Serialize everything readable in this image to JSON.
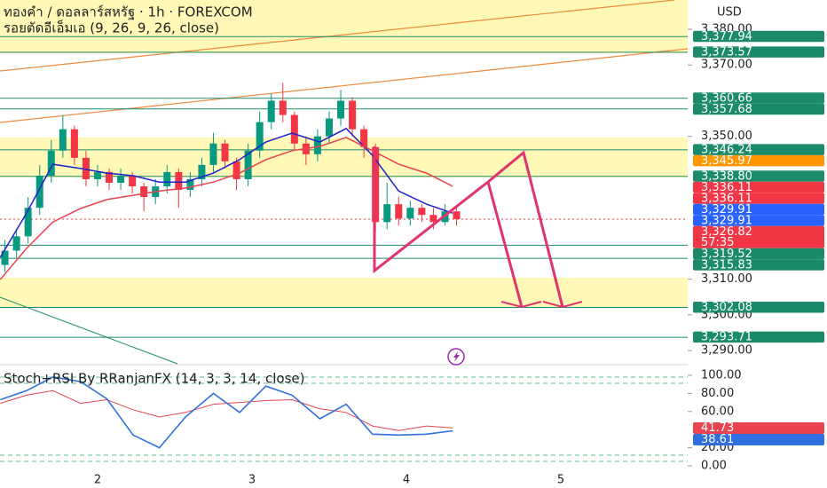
{
  "chart_data": [
    {
      "type": "candlestick",
      "title": "ทองคำ / ดอลลาร์สหรัฐ · 1h · FOREXCOM",
      "subtitle": "รอยตัดอีเอ็มเอ (9, 26, 9, 26, close)",
      "axis_label": "USD",
      "x": [
        1.4,
        1.475,
        1.55,
        1.625,
        1.7,
        1.775,
        1.85,
        1.925,
        2.0,
        2.075,
        2.15,
        2.225,
        2.3,
        2.375,
        2.45,
        2.525,
        2.6,
        2.675,
        2.75,
        2.825,
        2.9,
        2.975,
        3.05,
        3.125,
        3.2,
        3.275,
        3.35,
        3.425,
        3.5,
        3.575,
        3.65,
        3.725,
        3.8,
        3.875,
        3.95,
        4.025,
        4.1,
        4.175,
        4.25,
        4.325
      ],
      "open": [
        3314,
        3318,
        3322,
        3330,
        3339,
        3346,
        3352,
        3344,
        3338,
        3340,
        3337,
        3339,
        3336,
        3333,
        3336,
        3340,
        3335,
        3338,
        3342,
        3348,
        3343,
        3338,
        3346,
        3354,
        3360,
        3356,
        3348,
        3345,
        3350,
        3355,
        3360,
        3352,
        3347,
        3326,
        3331,
        3327,
        3330,
        3328,
        3326,
        3329
      ],
      "high": [
        3321,
        3324,
        3333,
        3342,
        3349,
        3356,
        3353,
        3346,
        3342,
        3341,
        3341,
        3340,
        3337,
        3338,
        3342,
        3341,
        3340,
        3344,
        3351,
        3349,
        3344,
        3348,
        3357,
        3362,
        3365,
        3357,
        3350,
        3352,
        3357,
        3363,
        3361,
        3353,
        3348,
        3337,
        3333,
        3332,
        3331,
        3330,
        3331,
        3330
      ],
      "low": [
        3312,
        3316,
        3320,
        3328,
        3337,
        3344,
        3342,
        3336,
        3336,
        3335,
        3335,
        3334,
        3329,
        3331,
        3334,
        3330,
        3333,
        3336,
        3340,
        3341,
        3335,
        3336,
        3344,
        3352,
        3354,
        3346,
        3342,
        3343,
        3348,
        3353,
        3350,
        3344,
        3323,
        3324,
        3325,
        3325,
        3326,
        3324,
        3325,
        3325
      ],
      "close": [
        3318,
        3322,
        3330,
        3339,
        3346,
        3352,
        3344,
        3338,
        3340,
        3337,
        3339,
        3336,
        3333,
        3336,
        3340,
        3335,
        3338,
        3342,
        3348,
        3343,
        3338,
        3346,
        3354,
        3360,
        3356,
        3348,
        3345,
        3350,
        3355,
        3360,
        3352,
        3347,
        3326,
        3331,
        3327,
        3330,
        3328,
        3326,
        3329,
        3326.82
      ],
      "up_color": "#089981",
      "down_color": "#f23645",
      "overlays": [
        {
          "color": "#1e22c8",
          "x": [
            1.37,
            1.54,
            1.71,
            1.89,
            2.06,
            2.23,
            2.4,
            2.57,
            2.75,
            2.92,
            3.09,
            3.26,
            3.44,
            3.61,
            3.78,
            3.95,
            4.13,
            4.3
          ],
          "values": [
            3316.1,
            3328.5,
            3342.2,
            3341.0,
            3339.7,
            3339.0,
            3337.2,
            3337.2,
            3339.7,
            3343.5,
            3348.4,
            3350.9,
            3348.4,
            3352.2,
            3344.7,
            3334.7,
            3331.0,
            3328.5
          ]
        },
        {
          "color": "#e8434f",
          "x": [
            1.37,
            1.54,
            1.71,
            1.89,
            2.06,
            2.23,
            2.4,
            2.57,
            2.75,
            2.92,
            3.09,
            3.26,
            3.44,
            3.61,
            3.78,
            3.95,
            4.13,
            4.3
          ],
          "values": [
            3309.9,
            3318.6,
            3326.0,
            3329.8,
            3332.3,
            3333.5,
            3334.7,
            3335.5,
            3337.2,
            3339.7,
            3343.5,
            3346.0,
            3347.2,
            3349.7,
            3346.0,
            3342.2,
            3339.7,
            3336.0
          ]
        }
      ],
      "xlim": [
        1.368,
        5.822
      ],
      "xticks": [
        2,
        3,
        4,
        5
      ],
      "ylim": [
        3286.3,
        3388.2
      ],
      "yticks": [
        {
          "value": 3380,
          "label": "3,380.00"
        },
        {
          "value": 3370,
          "label": "3,370.00"
        },
        {
          "value": 3350,
          "label": "3,350.00"
        },
        {
          "value": 3310,
          "label": "3,310.00"
        },
        {
          "value": 3300,
          "label": "3,300.00"
        },
        {
          "value": 3290,
          "label": "3,290.00"
        }
      ],
      "price_labels": [
        {
          "value": 3377.94,
          "label": "3,377.94",
          "color": "#1b8a6b",
          "line": true
        },
        {
          "value": 3373.57,
          "label": "3,373.57",
          "color": "#1b8a6b",
          "line": true
        },
        {
          "value": 3360.66,
          "label": "3,360.66",
          "color": "#1b8a6b",
          "line": true
        },
        {
          "value": 3357.68,
          "label": "3,357.68",
          "color": "#1b8a6b",
          "line": true
        },
        {
          "value": 3346.24,
          "label": "3,346.24",
          "color": "#1b8a6b",
          "line": true
        },
        {
          "value": 3345.97,
          "label": "3,345.97",
          "color": "#ff9800",
          "line": false
        },
        {
          "value": 3338.8,
          "label": "3,338.80",
          "color": "#1b8a6b",
          "line": true
        },
        {
          "value": 3336.11,
          "label": "3,336.11",
          "color": "#f23645",
          "line": false
        },
        {
          "value": 3336.11,
          "label": "3,336.11",
          "color": "#f23645",
          "line": false
        },
        {
          "value": 3329.91,
          "label": "3,329.91",
          "color": "#2962ff",
          "line": false
        },
        {
          "value": 3329.91,
          "label": "3,329.91",
          "color": "#2962ff",
          "line": false
        },
        {
          "value": 3326.82,
          "label": "3,326.82",
          "color": "#f23645",
          "line": false,
          "countdown": "57:35"
        },
        {
          "value": 3319.52,
          "label": "3,319.52",
          "color": "#1b8a6b",
          "line": true
        },
        {
          "value": 3315.83,
          "label": "3,315.83",
          "color": "#1b8a6b",
          "line": true
        },
        {
          "value": 3302.08,
          "label": "3,302.08",
          "color": "#1b8a6b",
          "line": true
        },
        {
          "value": 3293.71,
          "label": "3,293.71",
          "color": "#1b8a6b",
          "line": true
        }
      ]
    },
    {
      "type": "line",
      "title": "Stoch+RSI By RRanjanFX (14, 3, 3, 14, close)",
      "x": [
        1.37,
        1.54,
        1.71,
        1.89,
        2.06,
        2.23,
        2.4,
        2.57,
        2.75,
        2.92,
        3.09,
        3.26,
        3.44,
        3.61,
        3.78,
        3.95,
        4.13,
        4.3
      ],
      "series": [
        {
          "color": "#e8434f",
          "values": [
            69,
            78,
            83,
            69,
            73,
            62,
            54,
            59,
            68,
            70,
            72,
            73,
            63,
            59,
            44,
            39,
            44,
            41.73
          ]
        },
        {
          "color": "#2f6fe0",
          "values": [
            73,
            83,
            98,
            93,
            74,
            34,
            20,
            54,
            80,
            59,
            88,
            78,
            52,
            68,
            35,
            34,
            35,
            38.61
          ]
        }
      ],
      "xlim": [
        1.368,
        5.822
      ],
      "ylim": [
        -12.7,
        112.7
      ],
      "yticks": [
        {
          "value": 100,
          "label": "100.00"
        },
        {
          "value": 80,
          "label": "80.00"
        },
        {
          "value": 60,
          "label": "60.00"
        },
        {
          "value": 20,
          "label": "20.00"
        },
        {
          "value": 0,
          "label": "0.00"
        }
      ]
    }
  ]
}
